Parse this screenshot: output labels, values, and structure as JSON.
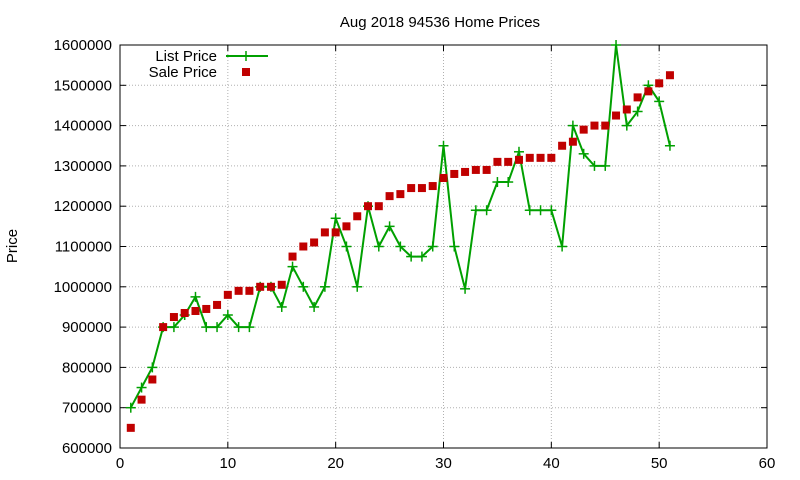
{
  "chart_data": {
    "type": "line",
    "title": "Aug 2018 94536 Home Prices",
    "xlabel": "",
    "ylabel": "Price",
    "xlim": [
      0,
      60
    ],
    "ylim": [
      600000,
      1600000
    ],
    "xticks": [
      0,
      10,
      20,
      30,
      40,
      50,
      60
    ],
    "yticks": [
      600000,
      700000,
      800000,
      900000,
      1000000,
      1100000,
      1200000,
      1300000,
      1400000,
      1500000,
      1600000
    ],
    "grid": true,
    "legend_position": "top-left",
    "series": [
      {
        "name": "List Price",
        "style": "line-plus",
        "color": "#00a000",
        "x": [
          1,
          2,
          3,
          4,
          5,
          6,
          7,
          8,
          9,
          10,
          11,
          12,
          13,
          14,
          15,
          16,
          17,
          18,
          19,
          20,
          21,
          22,
          23,
          24,
          25,
          26,
          27,
          28,
          29,
          30,
          31,
          32,
          33,
          34,
          35,
          36,
          37,
          38,
          39,
          40,
          41,
          42,
          43,
          44,
          45,
          46,
          47,
          48,
          49,
          50,
          51
        ],
        "y": [
          700000,
          750000,
          800000,
          900000,
          900000,
          930000,
          975000,
          900000,
          900000,
          930000,
          900000,
          900000,
          1000000,
          1000000,
          950000,
          1050000,
          1000000,
          950000,
          1000000,
          1170000,
          1100000,
          1000000,
          1200000,
          1100000,
          1150000,
          1100000,
          1075000,
          1075000,
          1100000,
          1350000,
          1100000,
          995000,
          1190000,
          1190000,
          1260000,
          1260000,
          1335000,
          1190000,
          1190000,
          1190000,
          1100000,
          1400000,
          1330000,
          1300000,
          1300000,
          1600000,
          1400000,
          1435000,
          1500000,
          1460000,
          1350000
        ]
      },
      {
        "name": "Sale Price",
        "style": "square",
        "color": "#c00000",
        "x": [
          1,
          2,
          3,
          4,
          5,
          6,
          7,
          8,
          9,
          10,
          11,
          12,
          13,
          14,
          15,
          16,
          17,
          18,
          19,
          20,
          21,
          22,
          23,
          24,
          25,
          26,
          27,
          28,
          29,
          30,
          31,
          32,
          33,
          34,
          35,
          36,
          37,
          38,
          39,
          40,
          41,
          42,
          43,
          44,
          45,
          46,
          47,
          48,
          49,
          50,
          51
        ],
        "y": [
          650000,
          720000,
          770000,
          900000,
          925000,
          935000,
          940000,
          945000,
          955000,
          980000,
          990000,
          990000,
          1000000,
          1000000,
          1005000,
          1075000,
          1100000,
          1110000,
          1135000,
          1135000,
          1150000,
          1175000,
          1200000,
          1200000,
          1225000,
          1230000,
          1245000,
          1245000,
          1250000,
          1270000,
          1280000,
          1285000,
          1290000,
          1290000,
          1310000,
          1310000,
          1315000,
          1320000,
          1320000,
          1320000,
          1350000,
          1360000,
          1390000,
          1400000,
          1400000,
          1425000,
          1440000,
          1470000,
          1485000,
          1505000,
          1525000
        ]
      }
    ]
  }
}
